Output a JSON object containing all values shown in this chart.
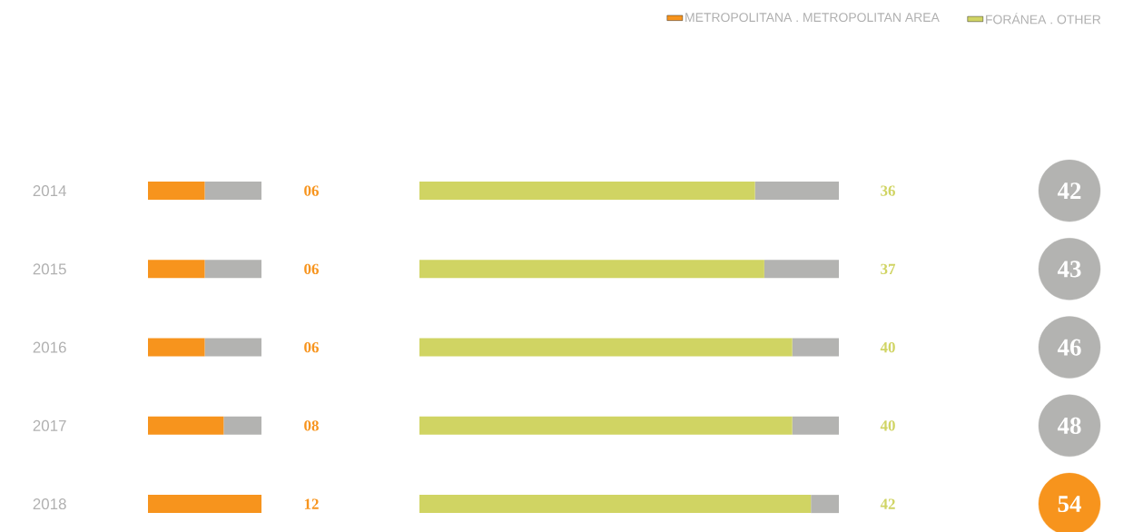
{
  "chart_data": [
    {
      "type": "bar",
      "orientation": "horizontal",
      "stacked": true,
      "categories": [
        "2014",
        "2015",
        "2016",
        "2017",
        "2018"
      ],
      "xlim": [
        0,
        12
      ],
      "tick_labels": "y",
      "legend": "top right",
      "series": [
        {
          "name": "METROPOLITANA . METROPOLITAN AREA",
          "color": "#f7941d",
          "values": [
            6,
            6,
            6,
            8,
            12
          ],
          "value_labels": [
            "06",
            "06",
            "06",
            "08",
            "12"
          ]
        },
        {
          "color": "#b3b3b1",
          "values": [
            6,
            6,
            6,
            4,
            0
          ]
        }
      ]
    },
    {
      "type": "bar",
      "orientation": "horizontal",
      "stacked": true,
      "categories": [
        "2014",
        "2015",
        "2016",
        "2017",
        "2018"
      ],
      "xlim": [
        0,
        45
      ],
      "tick_labels": false,
      "legend": "top right",
      "series": [
        {
          "name": "FORÁNEA . OTHER",
          "color": "#d0d463",
          "values": [
            36,
            37,
            40,
            40,
            42
          ],
          "value_labels": [
            "36",
            "37",
            "40",
            "40",
            "42"
          ]
        },
        {
          "color": "#b3b3b1",
          "values": [
            9,
            8,
            5,
            5,
            3
          ]
        }
      ]
    },
    {
      "type": "other",
      "values": [
        42,
        43,
        46,
        48,
        54
      ],
      "colors": [
        "#b3b3b1",
        "#b3b3b1",
        "#b3b3b1",
        "#b3b3b1",
        "#f7941d"
      ],
      "data_labels": true
    }
  ]
}
